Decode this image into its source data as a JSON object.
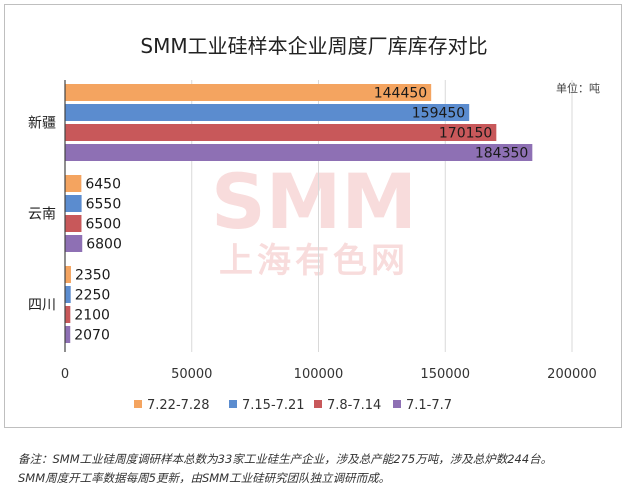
{
  "title": "SMM工业硅样本企业周度厂库库存对比",
  "unit_label": "单位：吨",
  "watermark": {
    "logo_text": "SMM",
    "sub_text": "上海有色网"
  },
  "footnote": {
    "line1": "备注：SMM工业硅周度调研样本总数为33家工业硅生产企业，涉及总产能275万吨，涉及总炉数244台。",
    "line2": "SMM周度开工率数据每周5更新，由SMM工业硅研究团队独立调研而成。"
  },
  "chart_data": {
    "type": "bar",
    "orientation": "horizontal",
    "title": "SMM工业硅样本企业周度厂库库存对比",
    "categories": [
      "新疆",
      "云南",
      "四川"
    ],
    "series": [
      {
        "name": "7.22-7.28",
        "color": "#f4a460",
        "values": [
          144450,
          6450,
          2350
        ]
      },
      {
        "name": "7.15-7.21",
        "color": "#5b8ccf",
        "values": [
          159450,
          6550,
          2250
        ]
      },
      {
        "name": "7.8-7.14",
        "color": "#c8585a",
        "values": [
          170150,
          6500,
          2100
        ]
      },
      {
        "name": "7.1-7.7",
        "color": "#8e70b4",
        "values": [
          184350,
          6800,
          2070
        ]
      }
    ],
    "xlim": [
      0,
      200000
    ],
    "xticks": [
      "0",
      "50000",
      "100000",
      "150000",
      "200000"
    ],
    "xtick_values": [
      0,
      50000,
      100000,
      150000,
      200000
    ],
    "grid": true,
    "legend_position": "bottom",
    "data_labels": true
  }
}
